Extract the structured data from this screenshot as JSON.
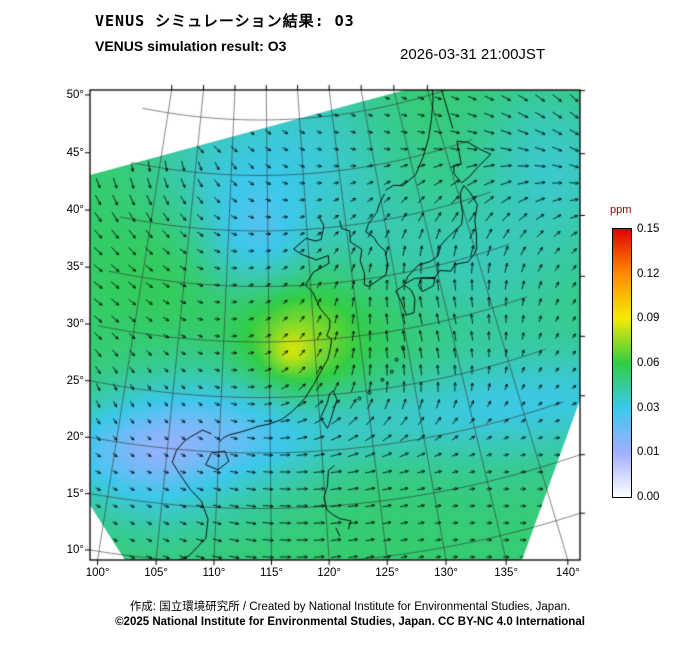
{
  "header": {
    "title_jp": "VENUS シミュレーション結果: O3",
    "title_en": "VENUS simulation result: O3",
    "datetime": "2026-03-31 21:00JST"
  },
  "map": {
    "lat_ticks": [
      "50°",
      "45°",
      "40°",
      "35°",
      "30°",
      "25°",
      "20°",
      "15°",
      "10°"
    ],
    "lon_ticks": [
      "100°",
      "105°",
      "110°",
      "115°",
      "120°",
      "125°",
      "130°",
      "135°",
      "140°"
    ]
  },
  "colorbar": {
    "unit": "ppm",
    "labels": [
      "0.15",
      "0.12",
      "0.09",
      "0.06",
      "0.03",
      "0.01",
      "0.00"
    ]
  },
  "footer": {
    "credit": "作成: 国立環境研究所 / Created by National Institute for Environmental Studies, Japan.",
    "license": "©2025 National Institute for Environmental Studies, Japan. CC BY-NC 4.0 International"
  },
  "chart_data": {
    "type": "heatmap",
    "variable": "O3",
    "unit": "ppm",
    "datetime": "2026-03-31 21:00JST",
    "lat_range": [
      10,
      50
    ],
    "lon_range": [
      100,
      140
    ],
    "lat_tick_step_deg": 5,
    "lon_tick_step_deg": 5,
    "levels": [
      0,
      0.01,
      0.03,
      0.06,
      0.09,
      0.12,
      0.15
    ],
    "level_colors": [
      "#ffffff",
      "#a0afff",
      "#3cc8eb",
      "#32cd46",
      "#f5eb00",
      "#ff8c00",
      "#e10000"
    ],
    "overlay": "wind vectors",
    "dominant_value_ppm": 0.05,
    "legend_position": "right"
  }
}
